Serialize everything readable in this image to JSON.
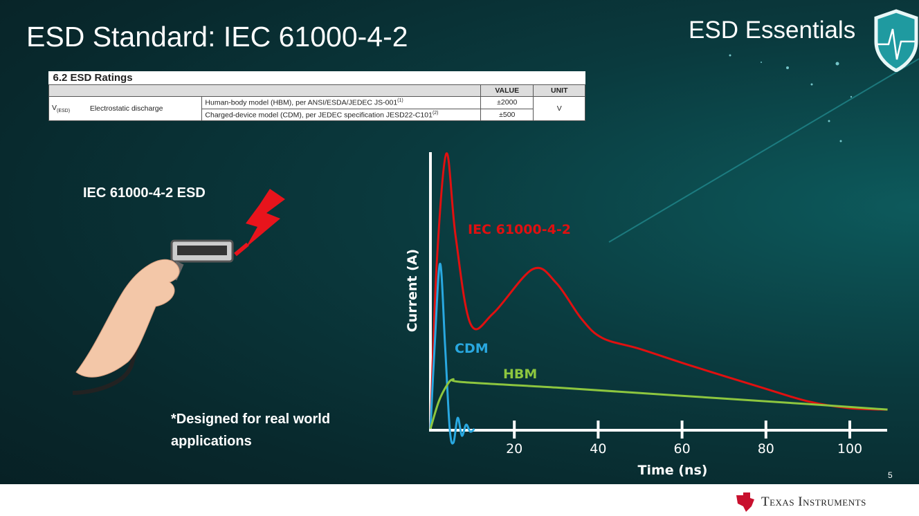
{
  "slide": {
    "title": "ESD Standard: IEC 61000-4-2",
    "brand": "ESD Essentials",
    "page_number": "5",
    "company": "Texas Instruments"
  },
  "table": {
    "caption": "6.2 ESD Ratings",
    "headers": [
      "VALUE",
      "UNIT"
    ],
    "symbol": "V",
    "symbol_sub": "(ESD)",
    "parameter": "Electrostatic discharge",
    "rows": [
      {
        "condition": "Human-body model (HBM), per ANSI/ESDA/JEDEC JS-001",
        "footnote": "(1)",
        "value": "±2000"
      },
      {
        "condition": "Charged-device model (CDM), per JEDEC specification JESD22-C101",
        "footnote": "(2)",
        "value": "±500"
      }
    ],
    "unit": "V"
  },
  "illustration": {
    "label": "IEC 61000-4-2 ESD",
    "note": "*Designed for real world applications"
  },
  "chart_data": {
    "type": "line",
    "xlabel": "Time (ns)",
    "ylabel": "Current (A)",
    "xlim": [
      0,
      109
    ],
    "ylim": [
      0,
      1
    ],
    "xticks": [
      20,
      40,
      60,
      80,
      100
    ],
    "grid": false,
    "series": [
      {
        "name": "IEC 61000-4-2",
        "color": "#e01010",
        "x": [
          0,
          1.5,
          3.8,
          6,
          9.6,
          15,
          24.4,
          30,
          36,
          41,
          50,
          62,
          79,
          90,
          100,
          109
        ],
        "y": [
          0,
          0.6,
          1.0,
          0.7,
          0.38,
          0.42,
          0.58,
          0.53,
          0.4,
          0.33,
          0.29,
          0.23,
          0.15,
          0.1,
          0.075,
          0.07
        ]
      },
      {
        "name": "CDM",
        "color": "#29a8e0",
        "x": [
          0,
          1,
          2.3,
          3.5,
          4.6,
          5.5,
          6.5,
          7.5,
          8.5,
          9.5,
          10.5
        ],
        "y": [
          0,
          0.3,
          0.6,
          0.3,
          0,
          -0.05,
          0.04,
          -0.025,
          0.015,
          -0.01,
          0
        ]
      },
      {
        "name": "HBM",
        "color": "#8dc63f",
        "x": [
          0,
          2,
          4,
          5.4,
          7.6,
          30,
          60,
          90,
          109
        ],
        "y": [
          0,
          0.1,
          0.16,
          0.18,
          0.17,
          0.15,
          0.12,
          0.09,
          0.07
        ]
      }
    ]
  }
}
